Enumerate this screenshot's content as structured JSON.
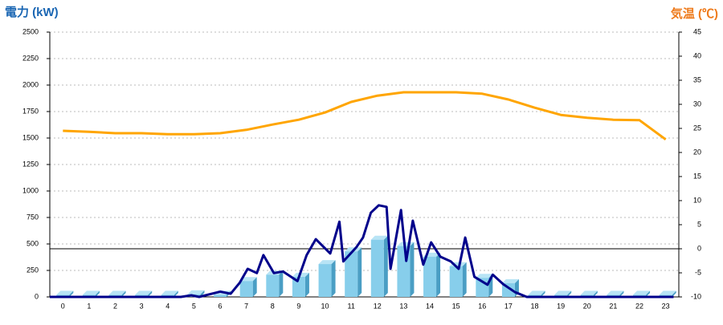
{
  "chart_data": {
    "type": "bar-line",
    "y_axis_title": "電力 (kW)",
    "y2_axis_title": "気温 (℃)",
    "categories": [
      "0",
      "1",
      "2",
      "3",
      "4",
      "5",
      "6",
      "7",
      "8",
      "9",
      "10",
      "11",
      "12",
      "13",
      "14",
      "15",
      "16",
      "17",
      "18",
      "19",
      "20",
      "21",
      "22",
      "23"
    ],
    "ylim": [
      0,
      2500
    ],
    "yticks": [
      0,
      250,
      500,
      750,
      1000,
      1250,
      1500,
      1750,
      2000,
      2250,
      2500
    ],
    "y2lim": [
      -10,
      45
    ],
    "y2ticks": [
      -10,
      -5,
      0,
      5,
      10,
      15,
      20,
      25,
      30,
      35,
      40,
      45
    ],
    "grid": true,
    "series": [
      {
        "type": "bar",
        "color": "#87ceeb",
        "values": [
          20,
          20,
          20,
          20,
          20,
          25,
          20,
          150,
          210,
          190,
          310,
          430,
          540,
          480,
          380,
          290,
          180,
          130,
          20,
          20,
          20,
          20,
          20,
          20
        ]
      },
      {
        "type": "line",
        "color": "#ffa500",
        "axis": "y2",
        "values": [
          24.5,
          24.3,
          24,
          24,
          23.8,
          23.8,
          24,
          24.7,
          25.8,
          26.8,
          28.3,
          30.5,
          31.8,
          32.5,
          32.5,
          32.5,
          32.2,
          31,
          29.3,
          27.8,
          27.2,
          26.8,
          26.7,
          22.7
        ]
      },
      {
        "type": "line",
        "color": "#00008b",
        "x": [
          -0.5,
          4.5,
          4.9,
          5.2,
          6.0,
          6.4,
          6.75,
          7.05,
          7.4,
          7.65,
          8.05,
          8.4,
          8.95,
          9.3,
          9.65,
          10.2,
          10.55,
          10.7,
          11.2,
          11.45,
          11.75,
          12.05,
          12.35,
          12.5,
          12.9,
          13.1,
          13.35,
          13.75,
          14.05,
          14.4,
          14.8,
          15.1,
          15.35,
          15.7,
          16.2,
          16.4,
          16.8,
          17.25,
          17.7,
          23.3
        ],
        "values": [
          0,
          0,
          15,
          0,
          50,
          30,
          135,
          265,
          225,
          395,
          225,
          240,
          150,
          395,
          545,
          410,
          710,
          335,
          470,
          560,
          795,
          865,
          850,
          265,
          820,
          340,
          720,
          305,
          515,
          380,
          335,
          265,
          560,
          190,
          115,
          210,
          120,
          45,
          0,
          0
        ]
      }
    ]
  }
}
